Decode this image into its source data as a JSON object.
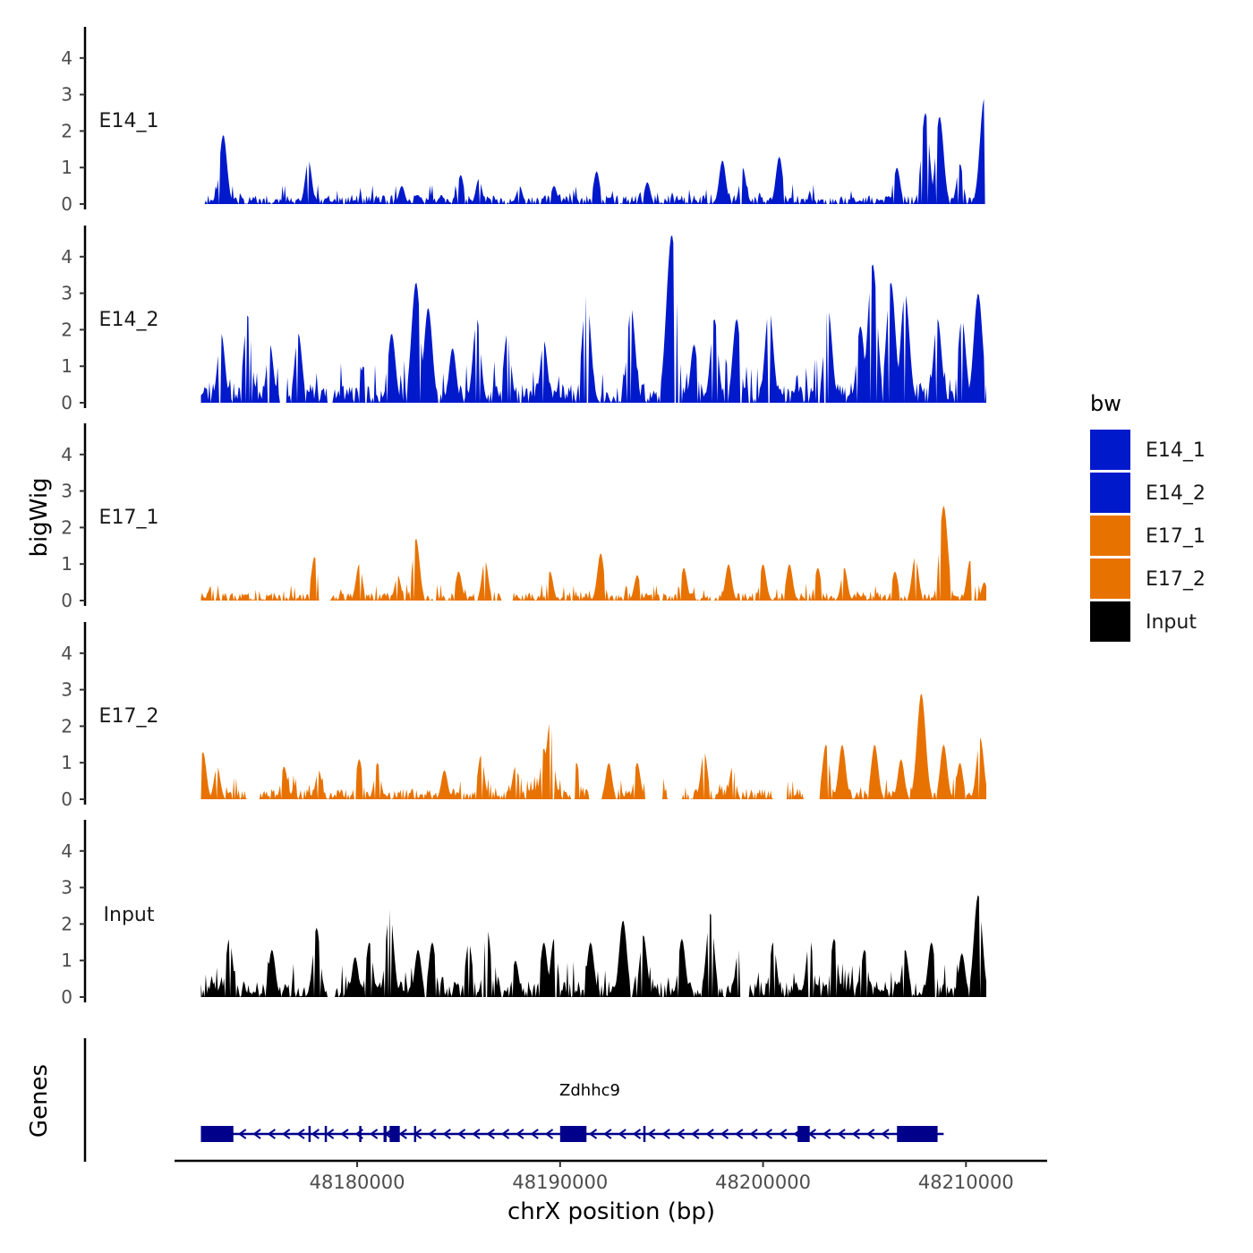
{
  "chart_data": {
    "type": "area",
    "title": "",
    "ylabel": "bigWig",
    "xlabel": "chrX position (bp)",
    "ylim": [
      0,
      4.8
    ],
    "y_ticks": [
      "0",
      "1",
      "2",
      "3",
      "4"
    ],
    "x_ticks": [
      {
        "label": "48180000",
        "value": 48180000
      },
      {
        "label": "48190000",
        "value": 48190000
      },
      {
        "label": "48200000",
        "value": 48200000
      },
      {
        "label": "48210000",
        "value": 48210000
      }
    ],
    "xlim": [
      48171000,
      48214000
    ],
    "data_range": [
      48172300,
      48211000
    ],
    "series": [
      {
        "name": "E14_1",
        "color": "#0019CB",
        "peaks": [
          [
            48173400,
            1.9
          ],
          [
            48177600,
            1.2
          ],
          [
            48182200,
            0.5
          ],
          [
            48185100,
            0.8
          ],
          [
            48186000,
            0.7
          ],
          [
            48188000,
            0.5
          ],
          [
            48189700,
            0.5
          ],
          [
            48191800,
            0.9
          ],
          [
            48194300,
            0.6
          ],
          [
            48198000,
            1.2
          ],
          [
            48199000,
            1.0
          ],
          [
            48200800,
            1.3
          ],
          [
            48206600,
            1.0
          ],
          [
            48208000,
            2.5
          ],
          [
            48208700,
            2.4
          ],
          [
            48209700,
            1.1
          ],
          [
            48210900,
            2.9
          ]
        ],
        "noise": 0.25,
        "seed": 1,
        "zero_gaps": [
          [
            48172300,
            48172500
          ]
        ]
      },
      {
        "name": "E14_2",
        "color": "#0019CB",
        "peaks": [
          [
            48173300,
            1.9
          ],
          [
            48174600,
            2.4
          ],
          [
            48175700,
            1.6
          ],
          [
            48177100,
            1.9
          ],
          [
            48180300,
            1.0
          ],
          [
            48181700,
            1.9
          ],
          [
            48182900,
            3.3
          ],
          [
            48183500,
            2.6
          ],
          [
            48184700,
            1.5
          ],
          [
            48185900,
            2.3
          ],
          [
            48187400,
            1.9
          ],
          [
            48189200,
            1.7
          ],
          [
            48191300,
            3.0
          ],
          [
            48193500,
            2.6
          ],
          [
            48195500,
            4.6
          ],
          [
            48196600,
            1.6
          ],
          [
            48197600,
            2.3
          ],
          [
            48198700,
            2.3
          ],
          [
            48200300,
            2.6
          ],
          [
            48203200,
            2.6
          ],
          [
            48204800,
            2.1
          ],
          [
            48205400,
            3.8
          ],
          [
            48206300,
            3.3
          ],
          [
            48207000,
            3.0
          ],
          [
            48208600,
            2.3
          ],
          [
            48209800,
            2.3
          ],
          [
            48210600,
            3.0
          ]
        ],
        "noise": 0.55,
        "seed": 2,
        "zero_gaps": [
          [
            48176200,
            48176500
          ],
          [
            48178500,
            48178800
          ]
        ]
      },
      {
        "name": "E17_1",
        "color": "#E87200",
        "peaks": [
          [
            48172800,
            0.4
          ],
          [
            48177900,
            1.2
          ],
          [
            48180100,
            1.0
          ],
          [
            48182000,
            0.7
          ],
          [
            48182900,
            1.7
          ],
          [
            48185000,
            0.8
          ],
          [
            48186300,
            1.1
          ],
          [
            48189500,
            0.8
          ],
          [
            48192000,
            1.3
          ],
          [
            48193800,
            0.7
          ],
          [
            48196100,
            0.9
          ],
          [
            48198300,
            1.0
          ],
          [
            48200000,
            1.0
          ],
          [
            48201300,
            1.0
          ],
          [
            48202700,
            0.9
          ],
          [
            48204000,
            0.9
          ],
          [
            48206500,
            0.8
          ],
          [
            48207500,
            1.2
          ],
          [
            48208900,
            2.6
          ],
          [
            48210200,
            1.1
          ],
          [
            48210900,
            0.5
          ]
        ],
        "noise": 0.22,
        "seed": 3,
        "zero_gaps": [
          [
            48178100,
            48178700
          ],
          [
            48187100,
            48187700
          ]
        ]
      },
      {
        "name": "E17_2",
        "color": "#E87200",
        "peaks": [
          [
            48172400,
            1.3
          ],
          [
            48173100,
            0.9
          ],
          [
            48176400,
            0.9
          ],
          [
            48178100,
            0.8
          ],
          [
            48180100,
            1.1
          ],
          [
            48181000,
            1.0
          ],
          [
            48184300,
            0.8
          ],
          [
            48186100,
            1.2
          ],
          [
            48187800,
            0.9
          ],
          [
            48189200,
            1.4
          ],
          [
            48189500,
            2.1
          ],
          [
            48190800,
            1.0
          ],
          [
            48192400,
            1.0
          ],
          [
            48193800,
            1.0
          ],
          [
            48194400,
            1.0
          ],
          [
            48197100,
            1.3
          ],
          [
            48198500,
            0.9
          ],
          [
            48201200,
            0.5
          ],
          [
            48203100,
            1.5
          ],
          [
            48203900,
            1.5
          ],
          [
            48205500,
            1.5
          ],
          [
            48206800,
            1.1
          ],
          [
            48207800,
            2.9
          ],
          [
            48208900,
            1.5
          ],
          [
            48209700,
            1.0
          ],
          [
            48210700,
            1.7
          ]
        ],
        "noise": 0.3,
        "seed": 4,
        "zero_gaps": [
          [
            48174600,
            48175200
          ],
          [
            48191500,
            48192000
          ],
          [
            48194200,
            48195000
          ],
          [
            48195300,
            48196000
          ],
          [
            48200500,
            48201200
          ],
          [
            48202000,
            48202800
          ]
        ]
      },
      {
        "name": "Input",
        "color": "#000000",
        "peaks": [
          [
            48173700,
            1.6
          ],
          [
            48175800,
            1.3
          ],
          [
            48178000,
            1.9
          ],
          [
            48179900,
            1.1
          ],
          [
            48180600,
            1.5
          ],
          [
            48181600,
            2.4
          ],
          [
            48183000,
            1.3
          ],
          [
            48183700,
            1.5
          ],
          [
            48185500,
            1.5
          ],
          [
            48186400,
            1.9
          ],
          [
            48187800,
            1.0
          ],
          [
            48189200,
            1.5
          ],
          [
            48189700,
            1.6
          ],
          [
            48191500,
            1.5
          ],
          [
            48193100,
            2.1
          ],
          [
            48194100,
            1.7
          ],
          [
            48196000,
            1.6
          ],
          [
            48197400,
            2.3
          ],
          [
            48198800,
            1.3
          ],
          [
            48200500,
            1.5
          ],
          [
            48202300,
            1.6
          ],
          [
            48203500,
            1.6
          ],
          [
            48205000,
            1.3
          ],
          [
            48207000,
            1.3
          ],
          [
            48208300,
            1.5
          ],
          [
            48209800,
            1.2
          ],
          [
            48210600,
            2.8
          ]
        ],
        "noise": 0.45,
        "seed": 5,
        "zero_gaps": [
          [
            48178500,
            48178900
          ],
          [
            48199000,
            48199300
          ]
        ]
      }
    ],
    "legend": {
      "title": "bw",
      "position": "right",
      "entries": [
        {
          "label": "E14_1",
          "color": "#0019CB"
        },
        {
          "label": "E14_2",
          "color": "#0019CB"
        },
        {
          "label": "E17_1",
          "color": "#E87200"
        },
        {
          "label": "E17_2",
          "color": "#E87200"
        },
        {
          "label": "Input",
          "color": "#000000"
        }
      ]
    },
    "genes_track": {
      "title": "Genes",
      "gene_name": "Zdhhc9",
      "strand": "-",
      "color": "#00008B",
      "start": 48172300,
      "end": 48208900,
      "exons": [
        [
          48172300,
          48173900
        ],
        [
          48177600,
          48177700
        ],
        [
          48178400,
          48178500
        ],
        [
          48180100,
          48180150
        ],
        [
          48181300,
          48181450
        ],
        [
          48181600,
          48182100
        ],
        [
          48182800,
          48182900
        ],
        [
          48190000,
          48191300
        ],
        [
          48194100,
          48194200
        ],
        [
          48201700,
          48202300
        ],
        [
          48206600,
          48208600
        ]
      ]
    }
  }
}
